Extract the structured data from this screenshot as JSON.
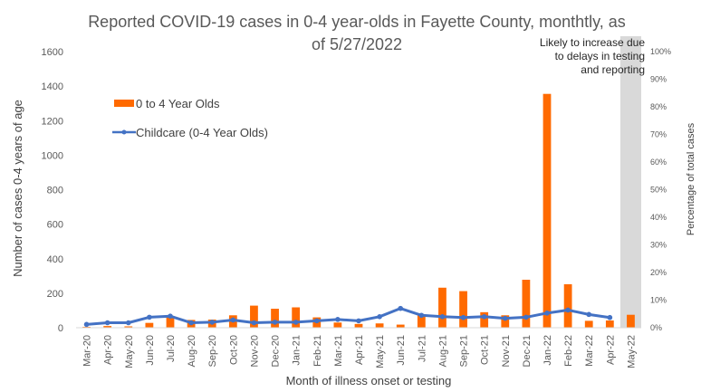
{
  "chart_data": {
    "type": "bar",
    "title_lines": [
      "Reported COVID-19 cases in 0-4 year-olds in Fayette County, monthtly, as",
      "of 5/27/2022"
    ],
    "xlabel": "Month of illness onset or testing",
    "ylabel": "Number of cases 0-4 years of age",
    "y2label": "Percentage of total cases",
    "ylim": [
      0,
      1600
    ],
    "y2lim": [
      0,
      100
    ],
    "yticks": [
      "0",
      "200",
      "400",
      "600",
      "800",
      "1000",
      "1200",
      "1400",
      "1600"
    ],
    "y2ticks": [
      "0%",
      "10%",
      "20%",
      "30%",
      "40%",
      "50%",
      "60%",
      "70%",
      "80%",
      "90%",
      "100%"
    ],
    "categories": [
      "Mar-20",
      "Apr-20",
      "May-20",
      "Jun-20",
      "Jul-20",
      "Aug-20",
      "Sep-20",
      "Oct-20",
      "Nov-20",
      "Dec-20",
      "Jan-21",
      "Feb-21",
      "Mar-21",
      "Apr-21",
      "May-21",
      "Jun-21",
      "Jul-21",
      "Aug-21",
      "Sep-21",
      "Oct-21",
      "Nov-21",
      "Dec-21",
      "Jan-22",
      "Feb-22",
      "Mar-22",
      "Apr-22",
      "May-22"
    ],
    "series": [
      {
        "name": "0 to 4 Year Olds",
        "kind": "bar",
        "axis": "left",
        "color": "#ff6a00",
        "values": [
          5,
          10,
          8,
          28,
          62,
          45,
          47,
          72,
          128,
          110,
          118,
          60,
          30,
          22,
          25,
          18,
          75,
          232,
          212,
          90,
          72,
          278,
          1355,
          252,
          40,
          42,
          75
        ]
      },
      {
        "name": "Childcare (0-4 Year Olds)",
        "kind": "line",
        "axis": "right",
        "color": "#4472c4",
        "values": [
          1.2,
          1.8,
          1.8,
          3.8,
          4.2,
          1.8,
          2.0,
          2.8,
          1.8,
          2.0,
          2.0,
          2.5,
          3.0,
          2.5,
          4.0,
          7.0,
          4.5,
          4.0,
          3.7,
          4.0,
          3.4,
          3.8,
          5.3,
          6.4,
          4.8,
          3.7,
          null
        ]
      }
    ],
    "shaded_region": {
      "category": "May-22",
      "color": "#d9d9d9"
    },
    "annotation_lines": [
      "Likely to increase due",
      "to delays in testing",
      "and reporting"
    ],
    "grid": false,
    "legend": "upper-left"
  }
}
